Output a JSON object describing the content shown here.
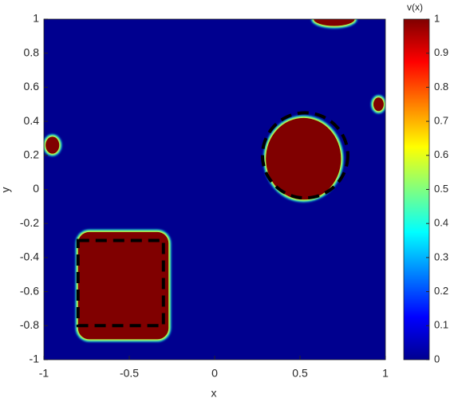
{
  "chart_data": {
    "type": "field",
    "xlabel": "x",
    "ylabel": "y",
    "xlim": [
      -1,
      1
    ],
    "ylim": [
      -1,
      1
    ],
    "xticks": [
      -1,
      -0.5,
      0,
      0.5,
      1
    ],
    "yticks": [
      -1,
      -0.8,
      -0.6,
      -0.4,
      -0.2,
      0,
      0.2,
      0.4,
      0.6,
      0.8,
      1
    ],
    "background": 0,
    "regions": [
      {
        "shape": "rect",
        "x": [
          -0.8,
          -0.27
        ],
        "y": [
          -0.88,
          -0.25
        ],
        "value": 1
      },
      {
        "shape": "ellipse",
        "cx": 0.52,
        "cy": 0.18,
        "rx": 0.22,
        "ry": 0.24,
        "value": 1
      },
      {
        "shape": "ellipse",
        "cx": -0.95,
        "cy": 0.26,
        "rx": 0.04,
        "ry": 0.05,
        "value": 1
      },
      {
        "shape": "ellipse",
        "cx": 0.96,
        "cy": 0.5,
        "rx": 0.03,
        "ry": 0.04,
        "value": 1
      },
      {
        "shape": "ellipse",
        "cx": 0.7,
        "cy": 1,
        "rx": 0.12,
        "ry": 0.04,
        "value": 1
      }
    ],
    "outlines": [
      {
        "shape": "rect",
        "x": [
          -0.8,
          -0.3
        ],
        "y": [
          -0.8,
          -0.3
        ]
      },
      {
        "shape": "ellipse",
        "cx": 0.53,
        "cy": 0.2,
        "rx": 0.25,
        "ry": 0.25
      }
    ],
    "colorbar": {
      "title": "v(x)",
      "lim": [
        0,
        1
      ],
      "ticks": [
        0,
        0.1,
        0.2,
        0.3,
        0.4,
        0.5,
        0.6,
        0.7,
        0.8,
        0.9,
        1
      ],
      "colormap": [
        "#00008f",
        "#0000ff",
        "#0080ff",
        "#00ffff",
        "#80ff80",
        "#ffff00",
        "#ff8000",
        "#ff0000",
        "#800000"
      ]
    }
  }
}
